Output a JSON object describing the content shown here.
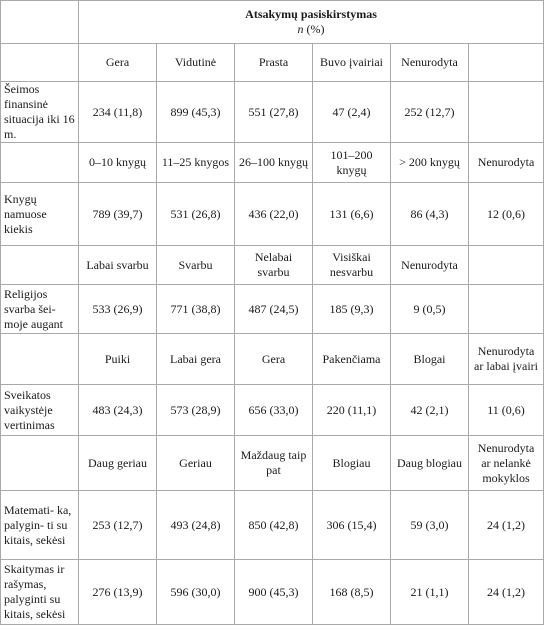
{
  "header": {
    "title": "Atsakymų pasiskirstymas",
    "sub_n": "n",
    "sub_pct": " (%)"
  },
  "sections": [
    {
      "headers": [
        "Gera",
        "Vidutinė",
        "Prasta",
        "Buvo įvairiai",
        "Nenurodyta",
        ""
      ],
      "label": "Šeimos finansinė situacija iki 16 m.",
      "values": [
        "234 (11,8)",
        "899 (45,3)",
        "551 (27,8)",
        "47 (2,4)",
        "252 (12,7)",
        ""
      ]
    },
    {
      "headers": [
        "0–10 knygų",
        "11–25 knygos",
        "26–100 knygų",
        "101–200 knygų",
        "> 200 knygų",
        "Nenurodyta"
      ],
      "label": "Knygų namuose kiekis",
      "values": [
        "789 (39,7)",
        "531 (26,8)",
        "436 (22,0)",
        "131 (6,6)",
        "86 (4,3)",
        "12 (0,6)"
      ]
    },
    {
      "headers": [
        "Labai svarbu",
        "Svarbu",
        "Nelabai svarbu",
        "Visiškai nesvarbu",
        "Nenurodyta",
        ""
      ],
      "label": "Religijos svarba šei- moje augant",
      "values": [
        "533 (26,9)",
        "771 (38,8)",
        "487 (24,5)",
        "185 (9,3)",
        "9 (0,5)",
        ""
      ]
    },
    {
      "headers": [
        "Puiki",
        "Labai gera",
        "Gera",
        "Pakenčiama",
        "Blogai",
        "Nenurodyta ar labai įvairi"
      ],
      "label": "Sveikatos vaikystėje vertinimas",
      "values": [
        "483 (24,3)",
        "573 (28,9)",
        "656 (33,0)",
        "220 (11,1)",
        "42 (2,1)",
        "11 (0,6)"
      ]
    },
    {
      "headers": [
        "Daug geriau",
        "Geriau",
        "Maždaug taip pat",
        "Blogiau",
        "Daug blogiau",
        "Nenurodyta ar nelankė mokyklos"
      ],
      "label": "Matemati- ka, palygin- ti su kitais, sekėsi",
      "values": [
        "253 (12,7)",
        "493 (24,8)",
        "850 (42,8)",
        "306 (15,4)",
        "59 (3,0)",
        "24 (1,2)"
      ]
    },
    {
      "label": "Skaitymas ir rašymas, palyginti su kitais, sekėsi",
      "values": [
        "276 (13,9)",
        "596 (30,0)",
        "900 (45,3)",
        "168 (8,5)",
        "21 (1,1)",
        "24 (1,2)"
      ]
    }
  ]
}
